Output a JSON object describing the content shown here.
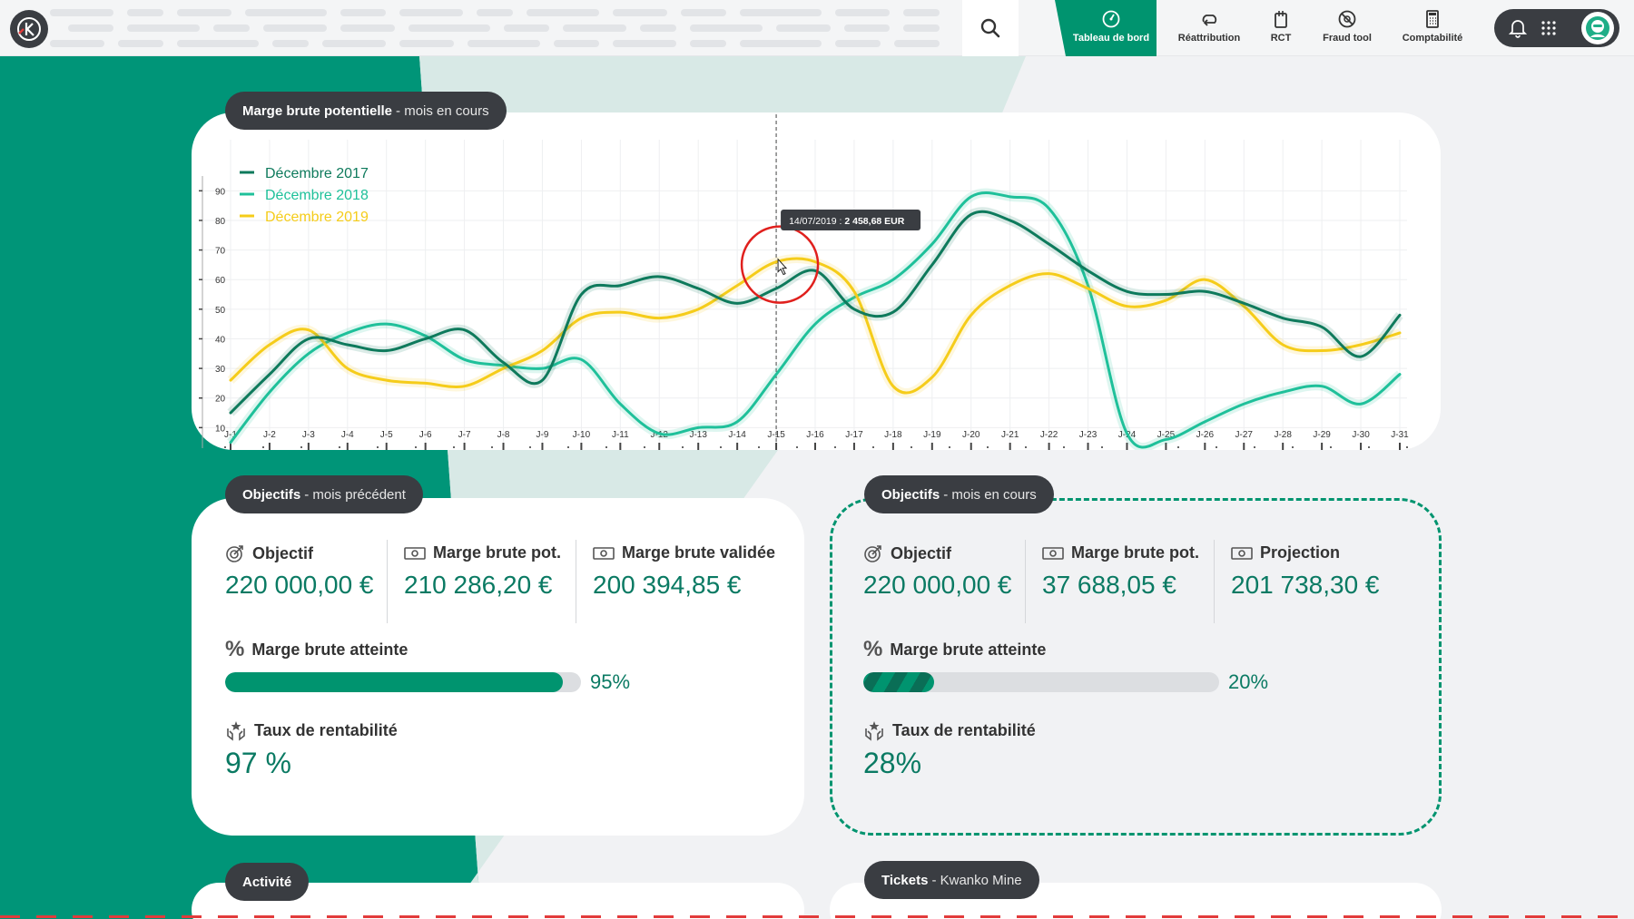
{
  "nav": {
    "items": [
      {
        "label": "Tableau de bord",
        "icon": "gauge-icon",
        "active": true
      },
      {
        "label": "Réattribution",
        "icon": "reassign-icon",
        "active": false
      },
      {
        "label": "RCT",
        "icon": "rct-icon",
        "active": false
      },
      {
        "label": "Fraud tool",
        "icon": "fraud-icon",
        "active": false
      },
      {
        "label": "Comptabilité",
        "icon": "calculator-icon",
        "active": false
      }
    ]
  },
  "colors": {
    "brand": "#00946f",
    "dark": "#3a3d42",
    "series_2017": "#0e7a5c",
    "series_2018": "#1fc09a",
    "series_2019": "#f5cc1a"
  },
  "chart_section": {
    "title": "Marge brute potentielle",
    "subtitle": "- mois en cours",
    "tooltip_date": "14/07/2019 :",
    "tooltip_value": "2 458,68 EUR"
  },
  "chart_data": {
    "type": "line",
    "categories": [
      "J-1",
      "J-2",
      "J-3",
      "J-4",
      "J-5",
      "J-6",
      "J-7",
      "J-8",
      "J-9",
      "J-10",
      "J-11",
      "J-12",
      "J-13",
      "J-14",
      "J-15",
      "J-16",
      "J-17",
      "J-18",
      "J-19",
      "J-20",
      "J-21",
      "J-22",
      "J-23",
      "J-24",
      "J-25",
      "J-26",
      "J-27",
      "J-28",
      "J-29",
      "J-30",
      "J-31"
    ],
    "y_ticks": [
      10,
      20,
      30,
      40,
      50,
      60,
      70,
      80,
      90
    ],
    "ylim": [
      0,
      95
    ],
    "legend_position": "top-left",
    "grid": true,
    "series": [
      {
        "name": "Décembre 2017",
        "color": "#0e7a5c",
        "values": [
          15,
          28,
          40,
          38,
          36,
          40,
          43,
          32,
          26,
          55,
          58,
          61,
          57,
          52,
          57,
          63,
          50,
          49,
          65,
          82,
          80,
          72,
          63,
          56,
          55,
          56,
          52,
          47,
          44,
          34,
          48
        ]
      },
      {
        "name": "Décembre 2018",
        "color": "#1fc09a",
        "values": [
          5,
          22,
          35,
          42,
          45,
          41,
          33,
          31,
          30,
          33,
          18,
          8,
          10,
          12,
          28,
          45,
          54,
          60,
          72,
          88,
          88,
          84,
          58,
          8,
          6,
          12,
          18,
          22,
          24,
          18,
          28
        ]
      },
      {
        "name": "Décembre 2019",
        "color": "#f5cc1a",
        "values": [
          26,
          38,
          43,
          30,
          26,
          25,
          24,
          30,
          36,
          47,
          49,
          47,
          50,
          58,
          66,
          66,
          56,
          24,
          27,
          48,
          58,
          62,
          57,
          51,
          53,
          60,
          51,
          38,
          36,
          38,
          42
        ]
      }
    ]
  },
  "prev_month": {
    "title": "Objectifs",
    "subtitle": "- mois précédent",
    "objectif_label": "Objectif",
    "objectif_value": "220 000,00 €",
    "marge_pot_label": "Marge brute pot.",
    "marge_pot_value": "210 286,20 €",
    "marge_val_label": "Marge brute validée",
    "marge_val_value": "200 394,85 €",
    "atteinte_label": "Marge brute atteinte",
    "atteinte_pct": "95%",
    "atteinte_fraction": 0.95,
    "rentab_label": "Taux de rentabilité",
    "rentab_value": "97 %"
  },
  "cur_month": {
    "title": "Objectifs",
    "subtitle": "- mois en cours",
    "objectif_label": "Objectif",
    "objectif_value": "220 000,00 €",
    "marge_pot_label": "Marge brute pot.",
    "marge_pot_value": "37 688,05 €",
    "projection_label": "Projection",
    "projection_value": "201 738,30 €",
    "atteinte_label": "Marge brute atteinte",
    "atteinte_pct": "20%",
    "atteinte_fraction": 0.2,
    "rentab_label": "Taux de rentabilité",
    "rentab_value": "28%"
  },
  "activity": {
    "title": "Activité"
  },
  "tickets": {
    "title": "Tickets",
    "subtitle": "- Kwanko Mine"
  }
}
